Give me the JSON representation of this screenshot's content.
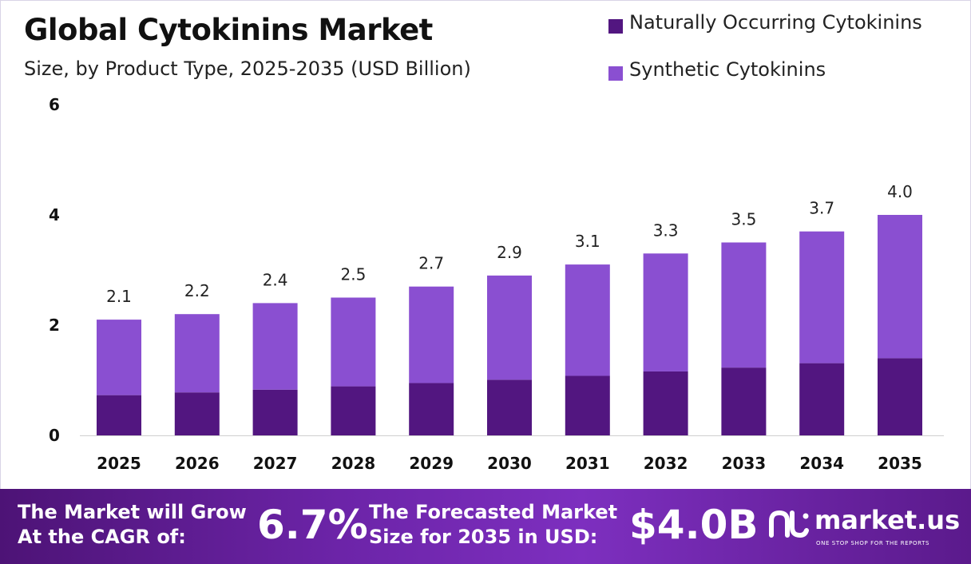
{
  "header": {
    "title": "Global Cytokinins Market",
    "subtitle": "Size, by Product Type, 2025-2035 (USD Billion)"
  },
  "legend": [
    {
      "label": "Naturally Occurring Cytokinins",
      "color": "#521680"
    },
    {
      "label": "Synthetic Cytokinins",
      "color": "#8a4fd1"
    }
  ],
  "chart_data": {
    "type": "bar",
    "stacked": true,
    "title": "Global Cytokinins Market",
    "subtitle": "Size, by Product Type, 2025-2035 (USD Billion)",
    "categories": [
      "2025",
      "2026",
      "2027",
      "2028",
      "2029",
      "2030",
      "2031",
      "2032",
      "2033",
      "2034",
      "2035"
    ],
    "series": [
      {
        "name": "Naturally Occurring Cytokinins",
        "color": "#521680",
        "values": [
          0.73,
          0.78,
          0.83,
          0.89,
          0.95,
          1.01,
          1.08,
          1.16,
          1.23,
          1.31,
          1.4
        ]
      },
      {
        "name": "Synthetic Cytokinins",
        "color": "#8a4fd1",
        "values": [
          1.37,
          1.42,
          1.57,
          1.61,
          1.75,
          1.89,
          2.02,
          2.14,
          2.27,
          2.39,
          2.6
        ]
      }
    ],
    "totals_labels": [
      "2.1",
      "2.2",
      "2.4",
      "2.5",
      "2.7",
      "2.9",
      "3.1",
      "3.3",
      "3.5",
      "3.7",
      "4.0"
    ],
    "y_ticks": [
      "0",
      "2",
      "4",
      "6"
    ],
    "ylim": [
      0,
      6
    ],
    "grid": false,
    "legend_position": "top-right"
  },
  "footer": {
    "cagr_label_line1": "The Market will Grow",
    "cagr_label_line2": "At the CAGR of:",
    "cagr_value": "6.7%",
    "forecast_label_line1": "The Forecasted Market",
    "forecast_label_line2": "Size for 2035 in USD:",
    "forecast_value": "$4.0B",
    "brand_name": "market.us",
    "brand_tagline": "ONE STOP SHOP FOR THE REPORTS"
  }
}
